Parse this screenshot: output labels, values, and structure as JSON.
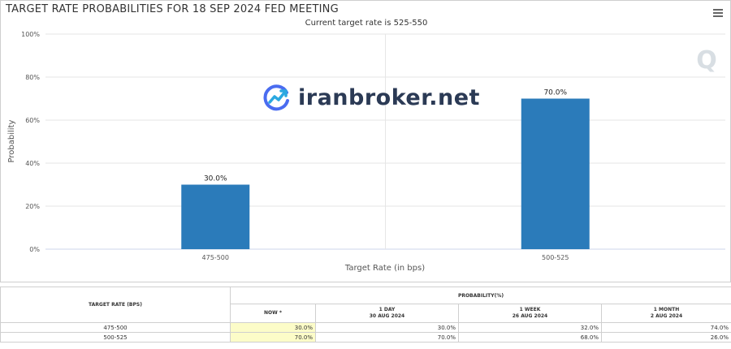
{
  "header": {
    "title": "TARGET RATE PROBABILITIES FOR 18 SEP 2024 FED MEETING",
    "subtitle": "Current target rate is 525-550",
    "menu_icon": "hamburger-menu-icon"
  },
  "watermark": {
    "text": "iranbroker.net",
    "icon": "growth-chart-icon"
  },
  "chart_data": {
    "type": "bar",
    "title": "TARGET RATE PROBABILITIES FOR 18 SEP 2024 FED MEETING",
    "subtitle": "Current target rate is 525-550",
    "categories": [
      "475-500",
      "500-525"
    ],
    "values": [
      30.0,
      70.0
    ],
    "data_labels": [
      "30.0%",
      "70.0%"
    ],
    "xlabel": "Target Rate (in bps)",
    "ylabel": "Probability",
    "ylim": [
      0,
      100
    ],
    "yticks": [
      "0%",
      "20%",
      "40%",
      "60%",
      "80%",
      "100%"
    ],
    "grid": true,
    "bar_color": "#2b7bba"
  },
  "table": {
    "col_target": "TARGET RATE (BPS)",
    "col_probability": "PROBABILITY(%)",
    "sub_headers": [
      {
        "line1": "NOW *",
        "line2": ""
      },
      {
        "line1": "1 DAY",
        "line2": "30 AUG 2024"
      },
      {
        "line1": "1 WEEK",
        "line2": "26 AUG 2024"
      },
      {
        "line1": "1 MONTH",
        "line2": "2 AUG 2024"
      }
    ],
    "rows": [
      {
        "rate": "475-500",
        "values": [
          "30.0%",
          "30.0%",
          "32.0%",
          "74.0%"
        ]
      },
      {
        "rate": "500-525",
        "values": [
          "70.0%",
          "70.0%",
          "68.0%",
          "26.0%"
        ]
      }
    ]
  }
}
